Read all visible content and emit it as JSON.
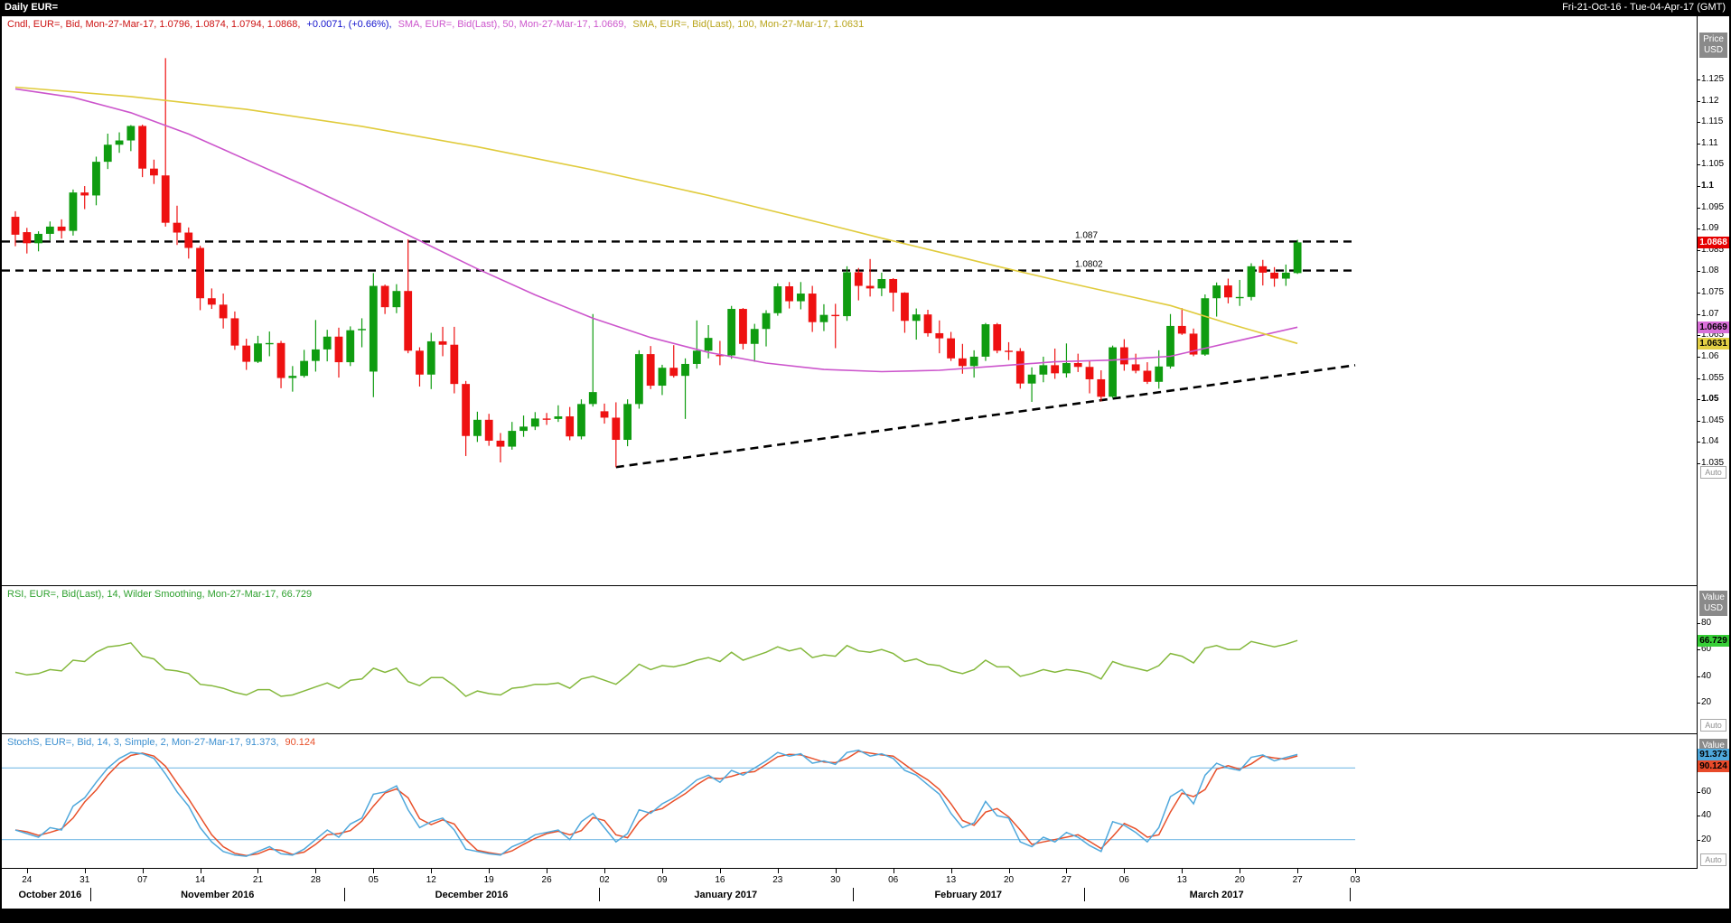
{
  "window": {
    "title": "Daily EUR=",
    "date_range": "Fri-21-Oct-16 - Tue-04-Apr-17 (GMT)"
  },
  "colors": {
    "candle_up": "#0f9c10",
    "candle_down": "#ee1111",
    "sma50": "#cc55cc",
    "sma100": "#e0cb3c",
    "rsi_line": "#84b83c",
    "stoch_k": "#4fa8dc",
    "stoch_d": "#e8502a",
    "ref_blue": "#86c2e8",
    "badge_last_bg": "#e60000",
    "badge_sma50_bg": "#d96fd9",
    "badge_sma100_bg": "#e3cf45",
    "badge_rsi_bg": "#37cf37"
  },
  "main_panel": {
    "legend": [
      {
        "text": "Cndl, EUR=, Bid, Mon-27-Mar-17, 1.0796, 1.0874, 1.0794, 1.0868,",
        "color": "#cc1111"
      },
      {
        "text": "+0.0071, (+0.66%),",
        "color": "#1111cc"
      },
      {
        "text": "SMA, EUR=, Bid(Last), 50, Mon-27-Mar-17, 1.0669,",
        "color": "#cc55cc"
      },
      {
        "text": "SMA, EUR=, Bid(Last), 100, Mon-27-Mar-17, 1.0631",
        "color": "#b8a41a"
      }
    ],
    "axis_title_lines": [
      "Price",
      "USD"
    ],
    "price_labels": [
      "1.125",
      "1.12",
      "1.115",
      "1.11",
      "1.105",
      "1.1",
      "1.095",
      "1.09",
      "1.085",
      "1.08",
      "1.075",
      "1.07",
      "1.065",
      "1.06",
      "1.055",
      "1.05",
      "1.045",
      "1.04",
      "1.035"
    ],
    "bold_labels": [
      "1.1",
      "1.05"
    ],
    "badges": [
      {
        "label": "1.0868",
        "price": 1.0868,
        "bg": "#e60000",
        "fg": "#ffffff"
      },
      {
        "label": "1.0669",
        "price": 1.0669,
        "bg": "#d96fd9",
        "fg": "#000000"
      },
      {
        "label": "1.0631",
        "price": 1.0631,
        "bg": "#e3cf45",
        "fg": "#000000"
      }
    ],
    "auto_label": "Auto",
    "hlines": [
      {
        "price": 1.087,
        "label": "1.087"
      },
      {
        "price": 1.0802,
        "label": "1.0802"
      }
    ],
    "trendline": {
      "x1_index": 52,
      "y1_price": 1.0341,
      "x2_index": 116,
      "y2_price": 1.058
    }
  },
  "rsi_panel": {
    "legend": [
      {
        "text": "RSI, EUR=, Bid(Last), 14, Wilder Smoothing, Mon-27-Mar-17, 66.729",
        "color": "#2fa12f"
      }
    ],
    "axis_title_lines": [
      "Value",
      "USD"
    ],
    "value_labels": [
      "80",
      "60",
      "40",
      "20"
    ],
    "badge": {
      "label": "66.729",
      "value": 66.729,
      "bg": "#37cf37",
      "fg": "#000000"
    },
    "auto_label": "Auto"
  },
  "stoch_panel": {
    "legend": [
      {
        "text": "StochS, EUR=, Bid, 14, 3, Simple, 2, Mon-27-Mar-17, 91.373,",
        "color": "#3b8fd0"
      },
      {
        "text": "90.124",
        "color": "#e8502a"
      }
    ],
    "axis_title_lines": [
      "Value"
    ],
    "value_labels": [
      "80",
      "60",
      "40",
      "20"
    ],
    "badges": [
      {
        "label": "91.373",
        "value": 91.373,
        "bg": "#4fa8dc",
        "fg": "#000000"
      },
      {
        "label": "90.124",
        "value": 90.124,
        "bg": "#e84a2a",
        "fg": "#000000"
      }
    ],
    "ref_levels": [
      80,
      20
    ],
    "auto_label": "Auto"
  },
  "x_axis": {
    "tick_indices": [
      1,
      6,
      11,
      16,
      21,
      26,
      31,
      36,
      41,
      46,
      51,
      56,
      61,
      66,
      71,
      76,
      81,
      86,
      91,
      96,
      101,
      106,
      111,
      116
    ],
    "tick_labels": [
      "24",
      "31",
      "07",
      "14",
      "21",
      "28",
      "05",
      "12",
      "19",
      "26",
      "02",
      "09",
      "16",
      "23",
      "30",
      "06",
      "13",
      "20",
      "27",
      "06",
      "13",
      "20",
      "27",
      "03"
    ],
    "month_labels": [
      "October 2016",
      "November 2016",
      "December 2016",
      "January 2017",
      "February 2017",
      "March 2017"
    ],
    "month_center_indices": [
      3,
      17.5,
      39.5,
      61.5,
      82.5,
      104
    ],
    "month_boundary_indices": [
      6.5,
      28.5,
      50.5,
      72.5,
      92.5,
      115.5
    ]
  },
  "chart_data": {
    "type": "candlestick",
    "symbol": "EUR=",
    "interval": "Daily",
    "title": "Daily EUR=",
    "ylim_main": [
      1.03,
      1.13
    ],
    "ylim_oscillators": [
      0,
      100
    ],
    "candles": {
      "dates": [
        "21 Oct",
        "24 Oct",
        "25 Oct",
        "26 Oct",
        "27 Oct",
        "28 Oct",
        "31 Oct",
        "01 Nov",
        "02 Nov",
        "03 Nov",
        "04 Nov",
        "07 Nov",
        "08 Nov",
        "09 Nov",
        "10 Nov",
        "11 Nov",
        "14 Nov",
        "15 Nov",
        "16 Nov",
        "17 Nov",
        "18 Nov",
        "21 Nov",
        "22 Nov",
        "23 Nov",
        "24 Nov",
        "25 Nov",
        "28 Nov",
        "29 Nov",
        "30 Nov",
        "01 Dec",
        "02 Dec",
        "05 Dec",
        "06 Dec",
        "07 Dec",
        "08 Dec",
        "09 Dec",
        "12 Dec",
        "13 Dec",
        "14 Dec",
        "15 Dec",
        "16 Dec",
        "19 Dec",
        "20 Dec",
        "21 Dec",
        "22 Dec",
        "23 Dec",
        "26 Dec",
        "27 Dec",
        "28 Dec",
        "29 Dec",
        "30 Dec",
        "02 Jan",
        "03 Jan",
        "04 Jan",
        "05 Jan",
        "06 Jan",
        "09 Jan",
        "10 Jan",
        "11 Jan",
        "12 Jan",
        "13 Jan",
        "16 Jan",
        "17 Jan",
        "18 Jan",
        "19 Jan",
        "20 Jan",
        "23 Jan",
        "24 Jan",
        "25 Jan",
        "26 Jan",
        "27 Jan",
        "30 Jan",
        "31 Jan",
        "01 Feb",
        "02 Feb",
        "03 Feb",
        "06 Feb",
        "07 Feb",
        "08 Feb",
        "09 Feb",
        "10 Feb",
        "13 Feb",
        "14 Feb",
        "15 Feb",
        "16 Feb",
        "17 Feb",
        "20 Feb",
        "21 Feb",
        "22 Feb",
        "23 Feb",
        "24 Feb",
        "27 Feb",
        "28 Feb",
        "01 Mar",
        "02 Mar",
        "03 Mar",
        "06 Mar",
        "07 Mar",
        "08 Mar",
        "09 Mar",
        "10 Mar",
        "13 Mar",
        "14 Mar",
        "15 Mar",
        "16 Mar",
        "17 Mar",
        "20 Mar",
        "21 Mar",
        "22 Mar",
        "23 Mar",
        "24 Mar",
        "27 Mar"
      ],
      "open": [
        1.0928,
        1.0892,
        1.0866,
        1.0888,
        1.0905,
        1.0895,
        1.0985,
        1.0978,
        1.1057,
        1.1097,
        1.1107,
        1.1141,
        1.1041,
        1.1025,
        1.0914,
        1.0891,
        1.0855,
        1.0737,
        1.0722,
        1.069,
        1.0626,
        1.0588,
        1.0631,
        1.0632,
        1.055,
        1.0555,
        1.059,
        1.0617,
        1.0647,
        1.0587,
        1.0662,
        1.0565,
        1.0766,
        1.0716,
        1.0754,
        1.0614,
        1.0558,
        1.0636,
        1.0628,
        1.0536,
        1.0414,
        1.0452,
        1.0403,
        1.0389,
        1.0426,
        1.0436,
        1.0455,
        1.0454,
        1.046,
        1.0413,
        1.0489,
        1.0472,
        1.0457,
        1.0405,
        1.0489,
        1.0606,
        1.0532,
        1.0574,
        1.0555,
        1.0583,
        1.0614,
        1.0604,
        1.0603,
        1.0712,
        1.063,
        1.0665,
        1.0702,
        1.0765,
        1.073,
        1.0748,
        1.0681,
        1.0698,
        1.0695,
        1.0798,
        1.0766,
        1.076,
        1.0782,
        1.075,
        1.0684,
        1.0699,
        1.0655,
        1.0643,
        1.0596,
        1.0578,
        1.06,
        1.0676,
        1.0614,
        1.0613,
        1.0537,
        1.0558,
        1.058,
        1.0561,
        1.0585,
        1.0576,
        1.0547,
        1.0506,
        1.0622,
        1.0582,
        1.0567,
        1.0541,
        1.0577,
        1.0672,
        1.0654,
        1.0605,
        1.0737,
        1.0767,
        1.0739,
        1.074,
        1.0812,
        1.0797,
        1.0783,
        1.0796
      ],
      "high": [
        1.0941,
        1.0902,
        1.0894,
        1.0917,
        1.0922,
        1.0992,
        1.1,
        1.1069,
        1.1123,
        1.1126,
        1.1143,
        1.1144,
        1.1062,
        1.13,
        1.0954,
        1.0903,
        1.086,
        1.076,
        1.0748,
        1.0706,
        1.0642,
        1.0649,
        1.0659,
        1.0637,
        1.0578,
        1.0616,
        1.0686,
        1.0663,
        1.0668,
        1.0671,
        1.069,
        1.0796,
        1.0769,
        1.077,
        1.0875,
        1.0622,
        1.0656,
        1.067,
        1.067,
        1.0543,
        1.0471,
        1.0466,
        1.0421,
        1.0447,
        1.0462,
        1.047,
        1.0468,
        1.0486,
        1.0482,
        1.05,
        1.07,
        1.049,
        1.0493,
        1.05,
        1.0615,
        1.0625,
        1.0581,
        1.0627,
        1.0596,
        1.0685,
        1.0674,
        1.0637,
        1.0719,
        1.0714,
        1.0677,
        1.0709,
        1.0772,
        1.0775,
        1.0775,
        1.0766,
        1.0723,
        1.0724,
        1.0812,
        1.0808,
        1.0829,
        1.0797,
        1.0784,
        1.0751,
        1.0713,
        1.071,
        1.0685,
        1.0658,
        1.063,
        1.0615,
        1.0679,
        1.0679,
        1.0634,
        1.062,
        1.0575,
        1.06,
        1.0619,
        1.0631,
        1.0607,
        1.0591,
        1.0568,
        1.0626,
        1.0641,
        1.0607,
        1.0587,
        1.0615,
        1.07,
        1.0714,
        1.0666,
        1.0746,
        1.0774,
        1.0783,
        1.078,
        1.0819,
        1.0827,
        1.081,
        1.0816,
        1.0874
      ],
      "low": [
        1.0859,
        1.0842,
        1.0847,
        1.0873,
        1.0877,
        1.0884,
        1.0946,
        1.0955,
        1.104,
        1.1078,
        1.1082,
        1.1021,
        1.1005,
        1.0905,
        1.0862,
        1.083,
        1.0709,
        1.0712,
        1.0666,
        1.0616,
        1.0569,
        1.0585,
        1.0601,
        1.0526,
        1.0518,
        1.0551,
        1.0565,
        1.0589,
        1.0551,
        1.0578,
        1.0622,
        1.0505,
        1.07,
        1.0702,
        1.0608,
        1.053,
        1.0524,
        1.0601,
        1.0514,
        1.0367,
        1.04,
        1.0391,
        1.0352,
        1.0382,
        1.0412,
        1.0428,
        1.044,
        1.0447,
        1.0404,
        1.0406,
        1.0483,
        1.0443,
        1.0341,
        1.039,
        1.0478,
        1.0524,
        1.051,
        1.0551,
        1.0454,
        1.0572,
        1.0596,
        1.058,
        1.0595,
        1.0617,
        1.0588,
        1.0624,
        1.0696,
        1.0713,
        1.0711,
        1.0658,
        1.066,
        1.062,
        1.0684,
        1.0732,
        1.0741,
        1.0742,
        1.0706,
        1.0656,
        1.064,
        1.0647,
        1.0608,
        1.059,
        1.056,
        1.0551,
        1.059,
        1.0608,
        1.0592,
        1.0525,
        1.0494,
        1.054,
        1.0548,
        1.0551,
        1.0564,
        1.0514,
        1.0495,
        1.0503,
        1.0567,
        1.0561,
        1.0536,
        1.0525,
        1.0572,
        1.0651,
        1.0601,
        1.0602,
        1.0694,
        1.0725,
        1.0719,
        1.0732,
        1.0767,
        1.0764,
        1.0766,
        1.0794
      ],
      "close": [
        1.0886,
        1.0866,
        1.0888,
        1.0905,
        1.0895,
        1.0985,
        1.0978,
        1.1057,
        1.1097,
        1.1107,
        1.1141,
        1.1041,
        1.1025,
        1.0914,
        1.0891,
        1.0855,
        1.0737,
        1.0722,
        1.069,
        1.0626,
        1.0588,
        1.0631,
        1.0632,
        1.055,
        1.0555,
        1.059,
        1.0617,
        1.0647,
        1.0587,
        1.0662,
        1.0665,
        1.0766,
        1.0716,
        1.0754,
        1.0614,
        1.0558,
        1.0636,
        1.0628,
        1.0536,
        1.0414,
        1.0452,
        1.0403,
        1.0389,
        1.0426,
        1.0436,
        1.0455,
        1.0454,
        1.046,
        1.0413,
        1.0489,
        1.0517,
        1.0457,
        1.0405,
        1.0489,
        1.0606,
        1.0532,
        1.0574,
        1.0555,
        1.0583,
        1.0614,
        1.0644,
        1.0603,
        1.0712,
        1.063,
        1.0665,
        1.0702,
        1.0765,
        1.073,
        1.0748,
        1.0681,
        1.0698,
        1.0695,
        1.0798,
        1.0766,
        1.076,
        1.0782,
        1.075,
        1.0684,
        1.0699,
        1.0655,
        1.0643,
        1.0596,
        1.0578,
        1.06,
        1.0676,
        1.0614,
        1.0613,
        1.0537,
        1.0558,
        1.058,
        1.0561,
        1.0585,
        1.0576,
        1.0547,
        1.0506,
        1.0622,
        1.0582,
        1.0567,
        1.0541,
        1.0577,
        1.0672,
        1.0654,
        1.0605,
        1.0737,
        1.0767,
        1.0739,
        1.074,
        1.0812,
        1.0797,
        1.0783,
        1.0797,
        1.0868
      ]
    },
    "sma50": {
      "period": 50,
      "last": 1.0669,
      "points": [
        [
          0,
          1.1228
        ],
        [
          5,
          1.1208
        ],
        [
          10,
          1.1172
        ],
        [
          15,
          1.1122
        ],
        [
          20,
          1.1062
        ],
        [
          25,
          1.1002
        ],
        [
          30,
          1.0938
        ],
        [
          35,
          1.0872
        ],
        [
          40,
          1.0806
        ],
        [
          45,
          1.0745
        ],
        [
          50,
          1.069
        ],
        [
          55,
          1.0645
        ],
        [
          60,
          1.061
        ],
        [
          65,
          1.0585
        ],
        [
          70,
          1.057
        ],
        [
          75,
          1.0565
        ],
        [
          80,
          1.0568
        ],
        [
          85,
          1.0578
        ],
        [
          90,
          1.0588
        ],
        [
          95,
          1.0592
        ],
        [
          100,
          1.0601
        ],
        [
          105,
          1.0632
        ],
        [
          111,
          1.0669
        ]
      ]
    },
    "sma100": {
      "period": 100,
      "last": 1.0631,
      "points": [
        [
          0,
          1.1232
        ],
        [
          10,
          1.121
        ],
        [
          20,
          1.118
        ],
        [
          30,
          1.114
        ],
        [
          40,
          1.1092
        ],
        [
          50,
          1.1038
        ],
        [
          60,
          1.0978
        ],
        [
          70,
          1.0912
        ],
        [
          75,
          1.0878
        ],
        [
          80,
          1.0845
        ],
        [
          85,
          1.0812
        ],
        [
          90,
          1.078
        ],
        [
          95,
          1.075
        ],
        [
          100,
          1.072
        ],
        [
          105,
          1.0678
        ],
        [
          111,
          1.0631
        ]
      ]
    },
    "rsi": {
      "period": 14,
      "smoothing": "Wilder Smoothing",
      "last": 66.729,
      "values": [
        43,
        41,
        42,
        45,
        44,
        52,
        51,
        58,
        62,
        63,
        65,
        55,
        53,
        45,
        44,
        42,
        34,
        33,
        31,
        28,
        26,
        30,
        30,
        25,
        26,
        29,
        32,
        35,
        31,
        37,
        38,
        46,
        43,
        46,
        36,
        33,
        39,
        39,
        33,
        25,
        29,
        27,
        26,
        31,
        32,
        34,
        34,
        35,
        31,
        38,
        40,
        37,
        34,
        41,
        49,
        45,
        48,
        47,
        49,
        52,
        54,
        51,
        58,
        52,
        55,
        58,
        62,
        59,
        61,
        54,
        56,
        55,
        63,
        59,
        58,
        60,
        57,
        51,
        53,
        49,
        48,
        44,
        42,
        45,
        52,
        47,
        47,
        40,
        42,
        45,
        43,
        45,
        44,
        42,
        38,
        51,
        48,
        46,
        44,
        48,
        57,
        55,
        50,
        61,
        63,
        60,
        60,
        66,
        64,
        62,
        64,
        66.729
      ]
    },
    "stoch": {
      "k_period": 14,
      "d_period": 3,
      "type": "Simple",
      "slowing": 2,
      "k_last": 91.373,
      "d_last": 90.124,
      "k": [
        28,
        25,
        22,
        30,
        28,
        48,
        55,
        68,
        80,
        88,
        93,
        92,
        88,
        75,
        60,
        48,
        30,
        18,
        10,
        7,
        6,
        10,
        14,
        8,
        7,
        12,
        20,
        28,
        22,
        33,
        38,
        58,
        60,
        65,
        45,
        30,
        35,
        38,
        28,
        12,
        10,
        8,
        7,
        14,
        18,
        24,
        26,
        28,
        20,
        35,
        42,
        30,
        18,
        25,
        45,
        42,
        50,
        55,
        62,
        70,
        74,
        68,
        78,
        74,
        80,
        86,
        93,
        90,
        92,
        84,
        86,
        83,
        93,
        95,
        90,
        92,
        88,
        78,
        74,
        66,
        58,
        42,
        30,
        34,
        52,
        40,
        38,
        18,
        14,
        22,
        18,
        26,
        22,
        15,
        10,
        35,
        32,
        26,
        18,
        30,
        56,
        62,
        50,
        74,
        84,
        80,
        78,
        89,
        91,
        86,
        88.9,
        91.373
      ]
    }
  }
}
